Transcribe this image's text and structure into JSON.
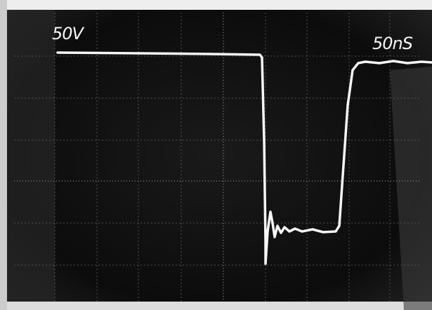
{
  "labels": {
    "voltage_scale": "50V",
    "time_scale": "50nS"
  }
}
